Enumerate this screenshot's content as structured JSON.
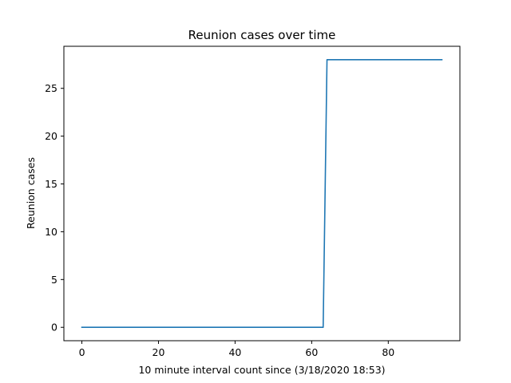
{
  "chart_data": {
    "type": "line",
    "title": "Reunion cases over time",
    "xlabel": "10 minute interval count since (3/18/2020 18:53)",
    "ylabel": "Reunion cases",
    "xlim": [
      -4.7,
      98.7
    ],
    "ylim": [
      -1.4,
      29.4
    ],
    "x_ticks": [
      0,
      20,
      40,
      60,
      80
    ],
    "y_ticks": [
      0,
      5,
      10,
      15,
      20,
      25
    ],
    "grid": false,
    "series": [
      {
        "color": "#1f77b4",
        "points": [
          [
            0,
            0
          ],
          [
            63,
            0
          ],
          [
            64,
            28
          ],
          [
            94,
            28
          ]
        ]
      }
    ]
  }
}
